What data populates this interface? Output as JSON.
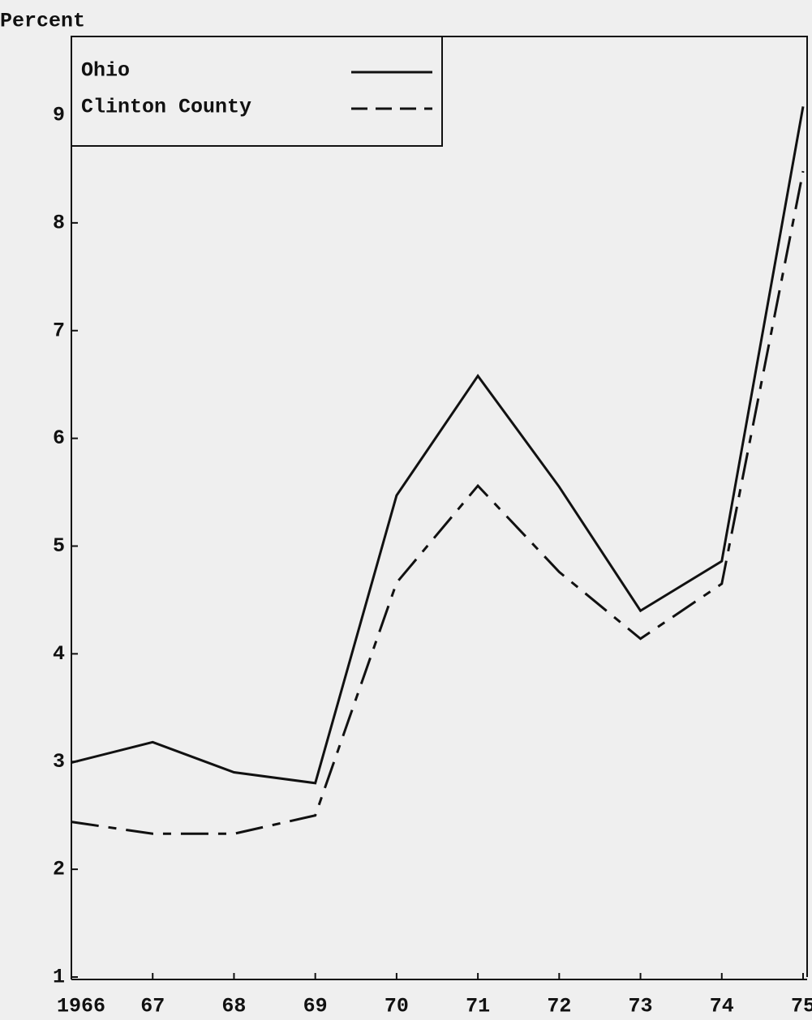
{
  "chart_data": {
    "type": "line",
    "y_label": "Percent",
    "categories": [
      "1966",
      "67",
      "68",
      "69",
      "70",
      "71",
      "72",
      "73",
      "74",
      "75"
    ],
    "series": [
      {
        "name": "Ohio",
        "color": "#111111",
        "linestyle": "solid",
        "values": [
          2.99,
          3.18,
          2.9,
          2.8,
          5.47,
          6.58,
          5.55,
          4.4,
          4.86,
          9.08
        ]
      },
      {
        "name": "Clinton County",
        "color": "#111111",
        "linestyle": "dashed",
        "values": [
          2.44,
          2.33,
          2.33,
          2.5,
          4.66,
          5.56,
          4.76,
          4.14,
          4.65,
          8.48
        ]
      }
    ],
    "ylim": [
      1,
      9.73
    ],
    "yticks": [
      1,
      2,
      3,
      4,
      5,
      6,
      7,
      8,
      9
    ],
    "legend": "upper left",
    "grid": false
  }
}
